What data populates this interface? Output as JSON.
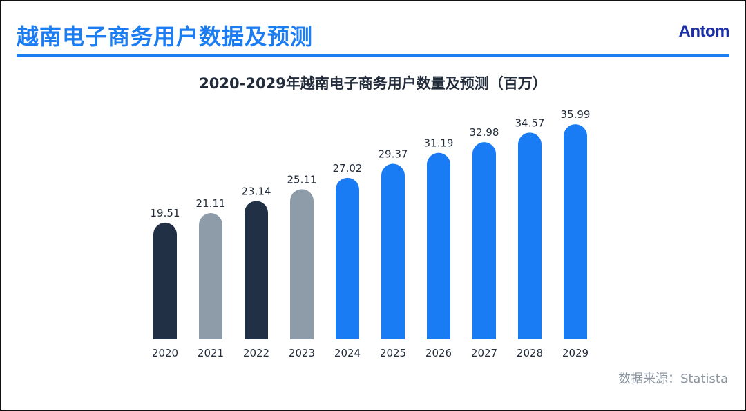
{
  "header": {
    "title": "越南电子商务用户数据及预测",
    "logo": "Antom"
  },
  "colors": {
    "accent": "#1c7cf2",
    "dark": "#223046",
    "gray": "#8d9ca8",
    "blue": "#1a7cf5"
  },
  "chart_data": {
    "type": "bar",
    "title": "2020-2029年越南电子商务用户数量及预测（百万）",
    "categories": [
      "2020",
      "2021",
      "2022",
      "2023",
      "2024",
      "2025",
      "2026",
      "2027",
      "2028",
      "2029"
    ],
    "values": [
      19.51,
      21.11,
      23.14,
      25.11,
      27.02,
      29.37,
      31.19,
      32.98,
      34.57,
      35.99
    ],
    "value_labels": [
      "19.51",
      "21.11",
      "23.14",
      "25.11",
      "27.02",
      "29.37",
      "31.19",
      "32.98",
      "34.57",
      "35.99"
    ],
    "bar_colors": [
      "#223046",
      "#8d9ca8",
      "#223046",
      "#8d9ca8",
      "#1a7cf5",
      "#1a7cf5",
      "#1a7cf5",
      "#1a7cf5",
      "#1a7cf5",
      "#1a7cf5"
    ],
    "ylim": [
      0,
      36
    ],
    "grid": false,
    "legend": "none"
  },
  "footer": {
    "source": "数据来源：Statista"
  }
}
